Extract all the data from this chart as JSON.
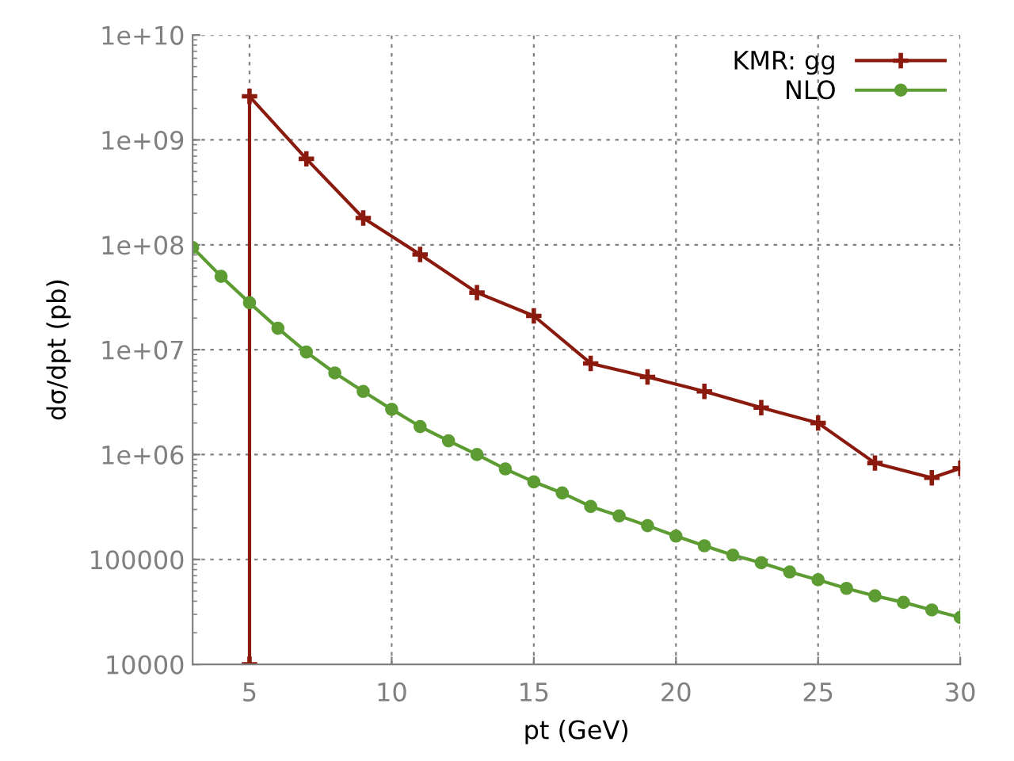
{
  "chart_data": {
    "type": "line",
    "xlabel": "pt (GeV)",
    "ylabel": "dσ/dpt (pb)",
    "log": "y",
    "xlim": [
      3,
      30
    ],
    "xticks": [
      5,
      10,
      15,
      20,
      25,
      30
    ],
    "ylim": [
      10000,
      10000000000
    ],
    "yticks": [
      {
        "value": 10000,
        "label": "10000"
      },
      {
        "value": 100000,
        "label": "100000"
      },
      {
        "value": 1000000,
        "label": "1e+06"
      },
      {
        "value": 10000000,
        "label": "1e+07"
      },
      {
        "value": 100000000,
        "label": "1e+08"
      },
      {
        "value": 1000000000,
        "label": "1e+09"
      },
      {
        "value": 10000000000,
        "label": "1e+10"
      }
    ],
    "grid": true,
    "legend": "top right",
    "series": [
      {
        "name": "KMR: gg",
        "color": "#8b1a0e",
        "marker": "cross",
        "x": [
          5,
          5,
          7,
          9,
          11,
          13,
          15,
          17,
          19,
          21,
          23,
          25,
          27,
          29,
          30
        ],
        "values": [
          10000,
          2600000000,
          660000000,
          180000000,
          81000000,
          35000000,
          21000000,
          7400000,
          5500000,
          4000000,
          2800000,
          2000000,
          830000,
          600000,
          740000
        ]
      },
      {
        "name": "NLO",
        "color": "#5c9c32",
        "marker": "circle",
        "x": [
          3,
          4,
          5,
          6,
          7,
          8,
          9,
          10,
          11,
          12,
          13,
          14,
          15,
          16,
          17,
          18,
          19,
          20,
          21,
          22,
          23,
          24,
          25,
          26,
          27,
          28,
          29,
          30
        ],
        "values": [
          94000000,
          50000000,
          28000000,
          16000000,
          9500000,
          6000000,
          4000000,
          2700000,
          1850000,
          1350000,
          1000000,
          730000,
          550000,
          430000,
          320000,
          260000,
          210000,
          167000,
          135000,
          110000,
          93000,
          76000,
          64000,
          53000,
          45000,
          39000,
          33000,
          28000
        ]
      }
    ]
  }
}
